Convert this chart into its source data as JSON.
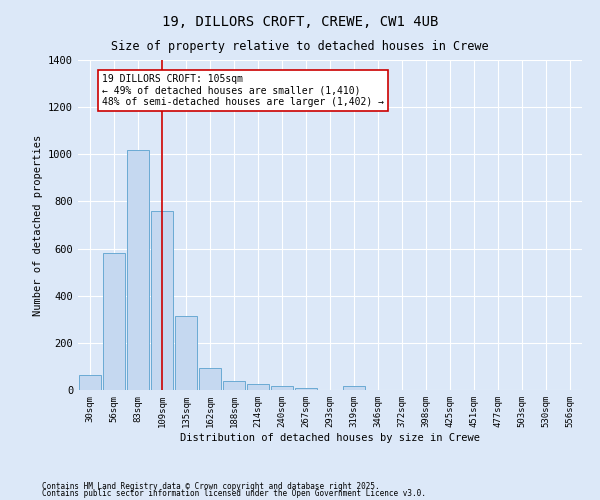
{
  "title": "19, DILLORS CROFT, CREWE, CW1 4UB",
  "subtitle": "Size of property relative to detached houses in Crewe",
  "xlabel": "Distribution of detached houses by size in Crewe",
  "ylabel": "Number of detached properties",
  "bar_color": "#c5d8f0",
  "bar_edge_color": "#6aaad4",
  "bg_color": "#dce8f8",
  "fig_color": "#dce8f8",
  "grid_color": "#ffffff",
  "categories": [
    "30sqm",
    "56sqm",
    "83sqm",
    "109sqm",
    "135sqm",
    "162sqm",
    "188sqm",
    "214sqm",
    "240sqm",
    "267sqm",
    "293sqm",
    "319sqm",
    "346sqm",
    "372sqm",
    "398sqm",
    "425sqm",
    "451sqm",
    "477sqm",
    "503sqm",
    "530sqm",
    "556sqm"
  ],
  "values": [
    65,
    580,
    1020,
    760,
    315,
    95,
    40,
    25,
    15,
    10,
    0,
    15,
    0,
    0,
    0,
    0,
    0,
    0,
    0,
    0,
    0
  ],
  "vline_x": 3.0,
  "vline_color": "#cc0000",
  "annotation_text": "19 DILLORS CROFT: 105sqm\n← 49% of detached houses are smaller (1,410)\n48% of semi-detached houses are larger (1,402) →",
  "annotation_box_color": "#ffffff",
  "annotation_box_edge": "#cc0000",
  "ylim": [
    0,
    1400
  ],
  "yticks": [
    0,
    200,
    400,
    600,
    800,
    1000,
    1200,
    1400
  ],
  "footer1": "Contains HM Land Registry data © Crown copyright and database right 2025.",
  "footer2": "Contains public sector information licensed under the Open Government Licence v3.0."
}
